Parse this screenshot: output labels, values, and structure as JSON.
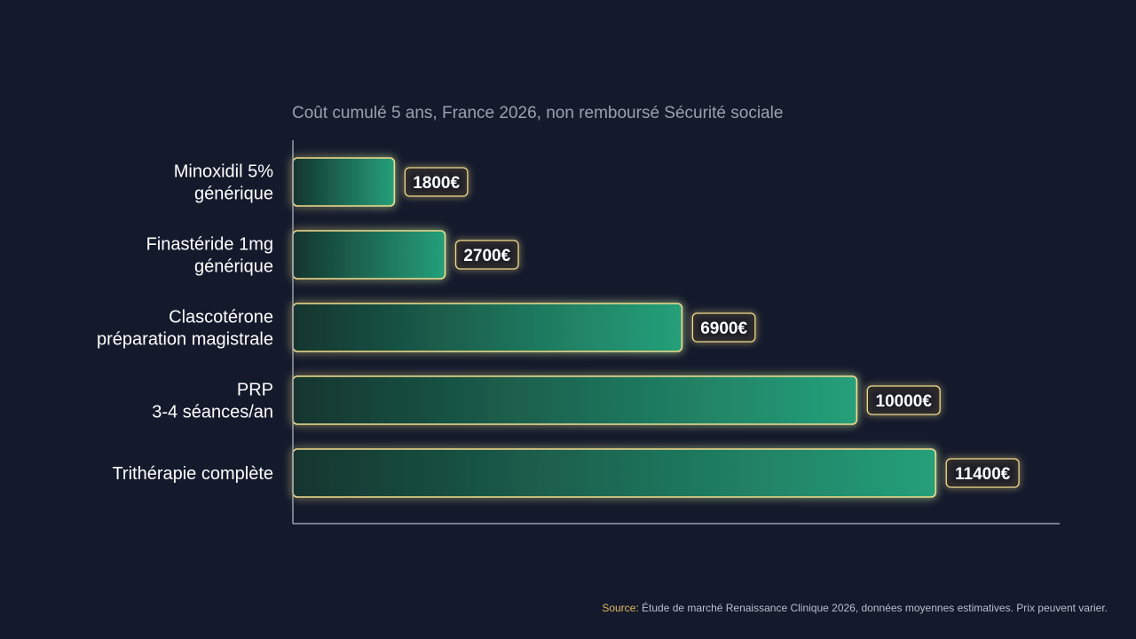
{
  "chart_data": {
    "type": "bar",
    "orientation": "horizontal",
    "title": "Coût cumulé 5 ans, France 2026, non remboursé Sécurité sociale",
    "categories": [
      [
        "Minoxidil 5%",
        "générique"
      ],
      [
        "Finastéride 1mg",
        "générique"
      ],
      [
        "Clascotérone",
        "préparation magistrale"
      ],
      [
        "PRP",
        "3-4 séances/an"
      ],
      [
        "Trithérapie complète"
      ]
    ],
    "values": [
      1800,
      2700,
      6900,
      10000,
      11400
    ],
    "value_labels": [
      "1800€",
      "2700€",
      "6900€",
      "10000€",
      "11400€"
    ],
    "xlim": [
      0,
      15000
    ],
    "grid": false
  },
  "source": {
    "label": "Source:",
    "text": " Étude de marché Renaissance Clinique 2026, données moyennes estimatives. Prix peuvent varier."
  },
  "colors": {
    "background": "#141a2c",
    "bar_start": "#14352f",
    "bar_end": "#25a07a",
    "bar_outline": "#f2dc8e",
    "axis": "#9aa0ad",
    "title": "#9aa0ad",
    "label_text": "#ffffff",
    "source_label": "#e3b85f"
  }
}
